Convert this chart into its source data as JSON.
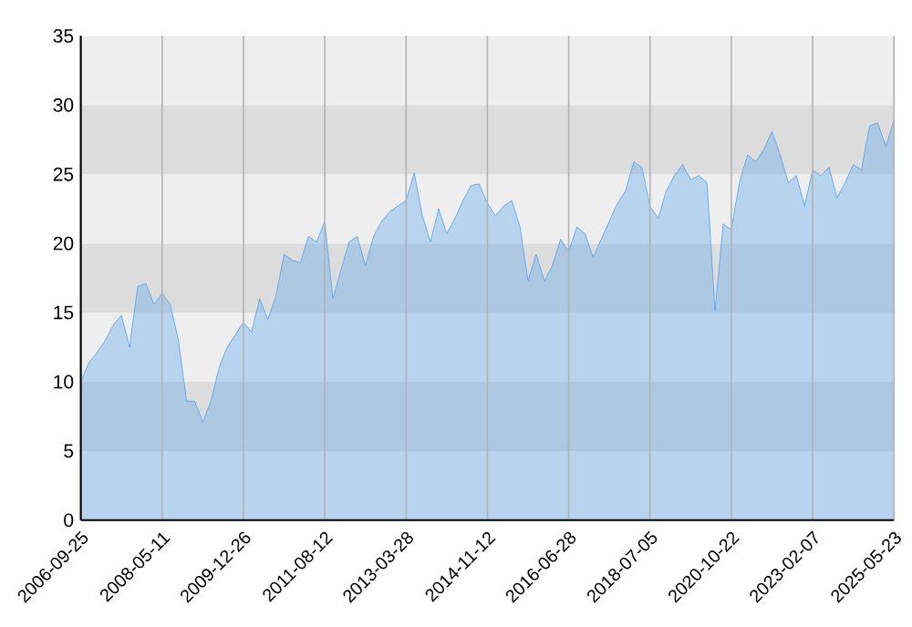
{
  "chart_data": {
    "type": "area",
    "categories": [
      "2006-09-25",
      null,
      null,
      null,
      null,
      null,
      null,
      null,
      null,
      null,
      "2008-05-11",
      null,
      null,
      null,
      null,
      null,
      null,
      null,
      null,
      null,
      "2009-12-26",
      null,
      null,
      null,
      null,
      null,
      null,
      null,
      null,
      null,
      "2011-08-12",
      null,
      null,
      null,
      null,
      null,
      null,
      null,
      null,
      null,
      "2013-03-28",
      null,
      null,
      null,
      null,
      null,
      null,
      null,
      null,
      null,
      "2014-11-12",
      null,
      null,
      null,
      null,
      null,
      null,
      null,
      null,
      null,
      "2016-06-28",
      null,
      null,
      null,
      null,
      null,
      null,
      null,
      null,
      null,
      "2018-07-05",
      null,
      null,
      null,
      null,
      null,
      null,
      null,
      null,
      null,
      "2020-10-22",
      null,
      null,
      null,
      null,
      null,
      null,
      null,
      null,
      null,
      "2023-02-07",
      null,
      null,
      null,
      null,
      null,
      null,
      null,
      null,
      null,
      "2025-05-23"
    ],
    "series": [
      {
        "color": "#5ea8ef",
        "values": [
          10.0,
          11.4,
          12.1,
          13.0,
          14.1,
          14.8,
          12.5,
          16.9,
          17.1,
          15.6,
          16.4,
          15.6,
          13.0,
          8.6,
          8.6,
          7.1,
          8.6,
          11.0,
          12.5,
          13.4,
          14.3,
          13.6,
          16.0,
          14.5,
          16.2,
          19.2,
          18.8,
          18.6,
          20.5,
          20.1,
          21.6,
          16.0,
          18.1,
          20.1,
          20.5,
          18.4,
          20.5,
          21.6,
          22.3,
          22.7,
          23.1,
          25.1,
          22.0,
          20.1,
          22.5,
          20.7,
          21.8,
          23.1,
          24.2,
          24.3,
          22.9,
          22.0,
          22.7,
          23.1,
          21.2,
          17.3,
          19.2,
          17.3,
          18.4,
          20.3,
          19.4,
          21.2,
          20.7,
          19.0,
          20.3,
          21.6,
          22.9,
          23.8,
          25.9,
          25.5,
          22.7,
          21.8,
          23.8,
          24.9,
          25.7,
          24.6,
          24.9,
          24.4,
          15.1,
          21.4,
          21.0,
          24.4,
          26.4,
          25.9,
          26.8,
          28.1,
          26.4,
          24.4,
          24.9,
          22.7,
          25.3,
          24.9,
          25.5,
          23.3,
          24.4,
          25.7,
          25.3,
          28.5,
          28.7,
          27.0,
          28.9
        ]
      }
    ],
    "ylim": [
      0,
      35
    ],
    "yticks": [
      0,
      5,
      10,
      15,
      20,
      25,
      30,
      35
    ],
    "grid": "x",
    "marker": "none",
    "line_style": "solid",
    "bands": [
      {
        "axis": "y",
        "from": 0,
        "to": 5,
        "color": "#eeeeee"
      },
      {
        "axis": "y",
        "from": 5,
        "to": 10,
        "color": "#dcdcdc"
      },
      {
        "axis": "y",
        "from": 10,
        "to": 15,
        "color": "#eeeeee"
      },
      {
        "axis": "y",
        "from": 15,
        "to": 20,
        "color": "#dcdcdc"
      },
      {
        "axis": "y",
        "from": 20,
        "to": 25,
        "color": "#eeeeee"
      },
      {
        "axis": "y",
        "from": 25,
        "to": 30,
        "color": "#dcdcdc"
      },
      {
        "axis": "y",
        "from": 30,
        "to": 35,
        "color": "#eeeeee"
      }
    ]
  }
}
